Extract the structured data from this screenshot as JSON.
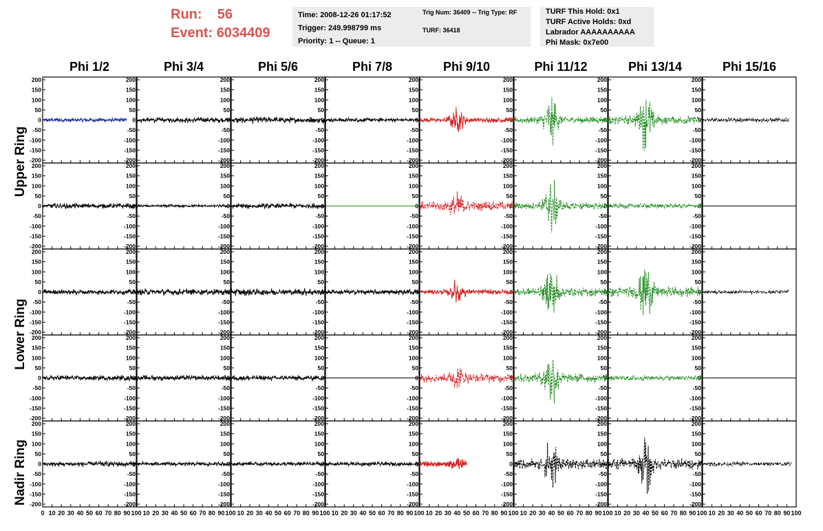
{
  "header": {
    "run_label": "Run:",
    "run_value": "56",
    "event_label": "Event:",
    "event_value": "6034409",
    "time_text": "Time: 2008-12-26 01:17:52",
    "trigger_text": "Trigger: 249.998799 ms",
    "priority_text": "Priority: 1 -- Queue: 1",
    "trig_text": "Trig Num: 36409 -- Trig Type: RF",
    "turf_text": "TURF: 36418",
    "hold_text": "TURF This Hold: 0x1",
    "active_holds_text": "TURF Active Holds: 0xd",
    "labrador_text": "Labrador AAAAAAAAAA",
    "phimask_text": "Phi Mask: 0x7e00"
  },
  "columns": [
    "Phi 1/2",
    "Phi 3/4",
    "Phi 5/6",
    "Phi 7/8",
    "Phi 9/10",
    "Phi 11/12",
    "Phi 13/14",
    "Phi 15/16"
  ],
  "row_groups": [
    "Upper Ring",
    "Lower Ring",
    "Nadir Ring"
  ],
  "chart_data": {
    "type": "line",
    "ylim": [
      -200,
      200
    ],
    "xlim": [
      0,
      100
    ],
    "yticks": [
      200,
      150,
      100,
      50,
      0,
      -50,
      -100,
      -150,
      -200
    ],
    "xticks": [
      0,
      10,
      20,
      30,
      40,
      50,
      60,
      70,
      80,
      90,
      100
    ],
    "colors": {
      "blue": "#1f2f9a",
      "black": "#000000",
      "red": "#d42020",
      "green": "#1d8a1d"
    },
    "panels": [
      [
        {
          "color": "blue",
          "amp": 12,
          "burst": 0,
          "dashed": false,
          "xmax": 90,
          "flat": false
        },
        {
          "color": "black",
          "amp": 15,
          "burst": 0,
          "dashed": false,
          "xmax": 100,
          "flat": false
        },
        {
          "color": "black",
          "amp": 18,
          "burst": 0,
          "dashed": false,
          "xmax": 100,
          "flat": false
        },
        {
          "color": "black",
          "amp": 12,
          "burst": 0,
          "dashed": false,
          "xmax": 100,
          "flat": false
        },
        {
          "color": "red",
          "amp": 15,
          "burst": 60,
          "dashed": false,
          "xmax": 100,
          "flat": false
        },
        {
          "color": "green",
          "amp": 20,
          "burst": 120,
          "dashed": true,
          "xmax": 100,
          "flat": false
        },
        {
          "color": "green",
          "amp": 25,
          "burst": 140,
          "dashed": true,
          "xmax": 100,
          "flat": false
        },
        {
          "color": "black",
          "amp": 12,
          "burst": 0,
          "dashed": true,
          "xmax": 92,
          "flat": false
        }
      ],
      [
        {
          "color": "black",
          "amp": 15,
          "burst": 0,
          "dashed": false,
          "xmax": 100,
          "flat": false
        },
        {
          "color": "black",
          "amp": 8,
          "burst": 0,
          "dashed": false,
          "xmax": 100,
          "flat": false
        },
        {
          "color": "black",
          "amp": 15,
          "burst": 0,
          "dashed": false,
          "xmax": 100,
          "flat": false
        },
        {
          "color": "green",
          "amp": 0,
          "burst": 0,
          "dashed": false,
          "xmax": 100,
          "flat": true
        },
        {
          "color": "red",
          "amp": 25,
          "burst": 60,
          "dashed": true,
          "xmax": 100,
          "flat": false
        },
        {
          "color": "green",
          "amp": 20,
          "burst": 160,
          "dashed": true,
          "xmax": 100,
          "flat": false
        },
        {
          "color": "green",
          "amp": 15,
          "burst": 0,
          "dashed": true,
          "xmax": 100,
          "flat": false
        },
        {
          "color": "black",
          "amp": 0,
          "burst": 0,
          "dashed": false,
          "xmax": 100,
          "flat": true
        }
      ],
      [
        {
          "color": "black",
          "amp": 15,
          "burst": 0,
          "dashed": false,
          "xmax": 100,
          "flat": false
        },
        {
          "color": "black",
          "amp": 18,
          "burst": 0,
          "dashed": false,
          "xmax": 100,
          "flat": false
        },
        {
          "color": "black",
          "amp": 20,
          "burst": 0,
          "dashed": false,
          "xmax": 100,
          "flat": false
        },
        {
          "color": "black",
          "amp": 15,
          "burst": 0,
          "dashed": false,
          "xmax": 100,
          "flat": false
        },
        {
          "color": "red",
          "amp": 15,
          "burst": 60,
          "dashed": false,
          "xmax": 100,
          "flat": false
        },
        {
          "color": "green",
          "amp": 25,
          "burst": 150,
          "dashed": true,
          "xmax": 100,
          "flat": false
        },
        {
          "color": "green",
          "amp": 30,
          "burst": 140,
          "dashed": true,
          "xmax": 100,
          "flat": false
        },
        {
          "color": "black",
          "amp": 10,
          "burst": 0,
          "dashed": true,
          "xmax": 92,
          "flat": false
        }
      ],
      [
        {
          "color": "black",
          "amp": 15,
          "burst": 0,
          "dashed": false,
          "xmax": 100,
          "flat": false
        },
        {
          "color": "black",
          "amp": 15,
          "burst": 0,
          "dashed": false,
          "xmax": 100,
          "flat": false
        },
        {
          "color": "black",
          "amp": 15,
          "burst": 0,
          "dashed": false,
          "xmax": 100,
          "flat": false
        },
        {
          "color": "black",
          "amp": 0,
          "burst": 0,
          "dashed": false,
          "xmax": 100,
          "flat": true
        },
        {
          "color": "red",
          "amp": 25,
          "burst": 60,
          "dashed": true,
          "xmax": 100,
          "flat": false
        },
        {
          "color": "green",
          "amp": 25,
          "burst": 140,
          "dashed": true,
          "xmax": 100,
          "flat": false
        },
        {
          "color": "green",
          "amp": 15,
          "burst": 0,
          "dashed": true,
          "xmax": 100,
          "flat": false
        },
        {
          "color": "black",
          "amp": 0,
          "burst": 0,
          "dashed": false,
          "xmax": 100,
          "flat": true
        }
      ],
      [
        {
          "color": "black",
          "amp": 15,
          "burst": 0,
          "dashed": false,
          "xmax": 100,
          "flat": false
        },
        {
          "color": "black",
          "amp": 12,
          "burst": 0,
          "dashed": false,
          "xmax": 100,
          "flat": false
        },
        {
          "color": "black",
          "amp": 12,
          "burst": 0,
          "dashed": false,
          "xmax": 100,
          "flat": false
        },
        {
          "color": "black",
          "amp": 12,
          "burst": 0,
          "dashed": false,
          "xmax": 100,
          "flat": false
        },
        {
          "color": "red",
          "amp": 15,
          "burst": 20,
          "dashed": false,
          "xmax": 50,
          "flat": false
        },
        {
          "color": "black",
          "amp": 30,
          "burst": 130,
          "dashed": true,
          "xmax": 100,
          "flat": false
        },
        {
          "color": "black",
          "amp": 30,
          "burst": 150,
          "dashed": true,
          "xmax": 100,
          "flat": false
        },
        {
          "color": "black",
          "amp": 12,
          "burst": 0,
          "dashed": true,
          "xmax": 95,
          "flat": false
        }
      ]
    ]
  }
}
